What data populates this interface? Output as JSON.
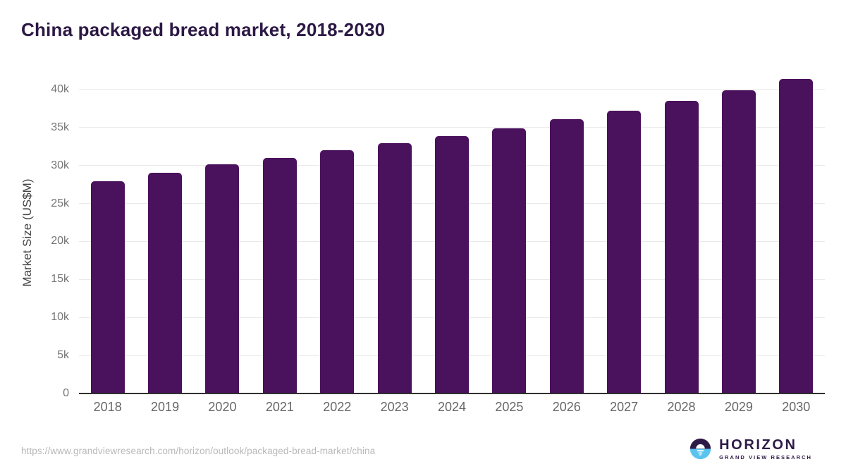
{
  "page": {
    "title": "China packaged bread market, 2018-2030",
    "source_url": "https://www.grandviewresearch.com/horizon/outlook/packaged-bread-market/china"
  },
  "logo": {
    "name": "HORIZON",
    "subtitle": "GRAND VIEW RESEARCH",
    "icon": "sunrise-horizon-icon"
  },
  "colors": {
    "title": "#2c1844",
    "bar": "#4a115c",
    "gridline": "#e9e9e9",
    "axis_line": "#303030",
    "ytick_label": "#757575",
    "xtick_label": "#666666",
    "yaxis_title": "#454545",
    "source_url": "#b8b8b8",
    "logo_purple": "#2e1a47",
    "logo_blue": "#5bc4ee"
  },
  "chart_data": {
    "type": "bar",
    "title": "China packaged bread market, 2018-2030",
    "categories": [
      "2018",
      "2019",
      "2020",
      "2021",
      "2022",
      "2023",
      "2024",
      "2025",
      "2026",
      "2027",
      "2028",
      "2029",
      "2030"
    ],
    "values": [
      27900,
      29000,
      30200,
      31000,
      32000,
      32900,
      33900,
      34900,
      36100,
      37200,
      38500,
      39900,
      41400
    ],
    "xlabel": "",
    "ylabel": "Market Size (US$M)",
    "ylim": [
      0,
      42500
    ],
    "ytick_values": [
      0,
      5000,
      10000,
      15000,
      20000,
      25000,
      30000,
      35000,
      40000
    ],
    "ytick_labels": [
      "0",
      "5k",
      "10k",
      "15k",
      "20k",
      "25k",
      "30k",
      "35k",
      "40k"
    ],
    "grid": true,
    "legend": false,
    "bar_color": "#4a115c"
  }
}
